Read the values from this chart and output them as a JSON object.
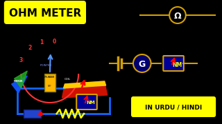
{
  "bg_color": "#000000",
  "title": "OHM METER",
  "title_bg": "#ffff00",
  "title_color": "#000000",
  "wire_color": "#D4A000",
  "blue_wire": "#1166FF",
  "galv_label": "G",
  "urdu_label": "IN URDU / HINDI",
  "urdu_bg": "#ffff00",
  "urdu_color": "#000000",
  "scale_labels": [
    "3",
    "2",
    "1",
    "0"
  ],
  "scale_color": "#FF3333",
  "pointer_color": "#5599FF",
  "omega_color": "#D4A000"
}
